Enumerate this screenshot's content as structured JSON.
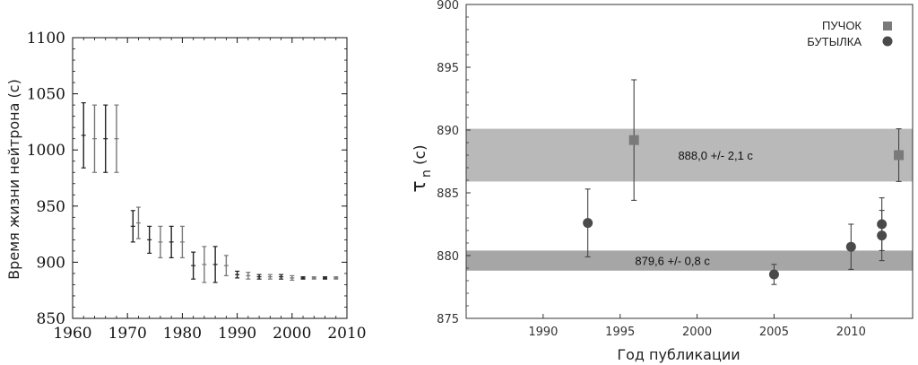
{
  "chart_data": [
    {
      "type": "scatter",
      "title": "",
      "xlabel": "",
      "ylabel": "Время жизни нейтрона (с)",
      "xlim": [
        1960,
        2010
      ],
      "ylim": [
        850,
        1100
      ],
      "x_ticks": [
        "1960",
        "1970",
        "1980",
        "1990",
        "2000",
        "2010"
      ],
      "y_ticks": [
        "850",
        "900",
        "950",
        "1000",
        "1050",
        "1100"
      ],
      "grid": false,
      "series": [
        {
          "x": [
            1962,
            1964,
            1966,
            1968,
            1971,
            1972,
            1974,
            1976,
            1978,
            1980,
            1982,
            1984,
            1986,
            1988,
            1990,
            1992,
            1994,
            1996,
            1998,
            2000,
            2002,
            2004,
            2006,
            2008
          ],
          "y": [
            1013,
            1010,
            1010,
            1010,
            932,
            935,
            920,
            918,
            918,
            918,
            897,
            898,
            898,
            897,
            889,
            888,
            887,
            887,
            887,
            886,
            886,
            886,
            886,
            886
          ],
          "err": [
            29,
            30,
            30,
            30,
            14,
            14,
            12,
            14,
            14,
            14,
            12,
            16,
            16,
            9,
            3,
            3,
            2,
            2,
            2,
            2,
            1,
            1,
            1,
            1
          ]
        }
      ]
    },
    {
      "type": "scatter",
      "title": "",
      "xlabel": "Год публикации",
      "ylabel_main": "τ",
      "ylabel_sub": "n",
      "ylabel_unit": "(с)",
      "xlim": [
        1985,
        2014
      ],
      "ylim": [
        875,
        900
      ],
      "x_ticks": [
        "1990",
        "1995",
        "2000",
        "2005",
        "2010"
      ],
      "y_ticks": [
        "875",
        "880",
        "885",
        "890",
        "895",
        "900"
      ],
      "grid": false,
      "legend_position": "top-right",
      "bands": [
        {
          "center": 888.0,
          "half_width": 2.1,
          "label": "888,0 +/- 2,1 с",
          "color": "#b9b9b9"
        },
        {
          "center": 879.6,
          "half_width": 0.8,
          "label": "879,6 +/- 0,8 с",
          "color": "#a6a6a6"
        }
      ],
      "series": [
        {
          "name": "ПУЧОК",
          "marker": "square",
          "color": "#7a7a7a",
          "x": [
            1995.9,
            2013.1
          ],
          "y": [
            889.2,
            888.0
          ],
          "err": [
            4.8,
            2.1
          ]
        },
        {
          "name": "БУТЫЛКА",
          "marker": "circle",
          "color": "#4a4a4a",
          "x": [
            1992.9,
            2005.0,
            2010.0,
            2012.0,
            2012.0
          ],
          "y": [
            882.6,
            878.5,
            880.7,
            882.5,
            881.6
          ],
          "err": [
            2.7,
            0.8,
            1.8,
            2.1,
            2.0
          ]
        }
      ]
    }
  ]
}
